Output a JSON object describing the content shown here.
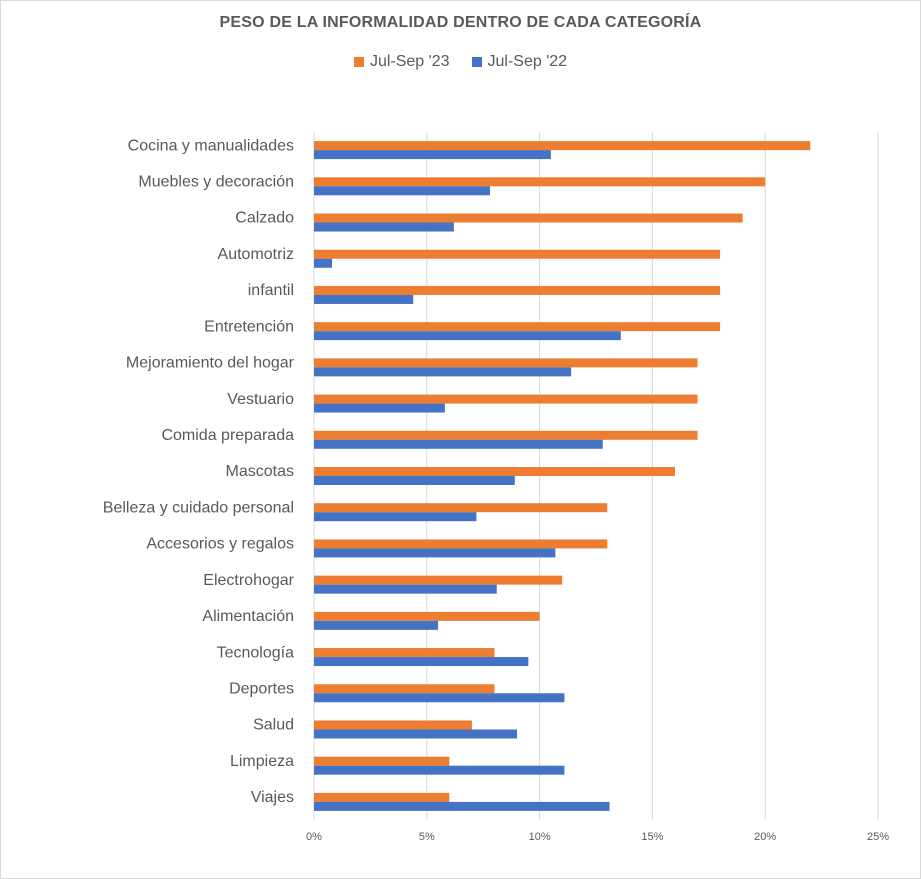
{
  "chart_data": {
    "type": "bar",
    "orientation": "horizontal",
    "title": "PESO DE LA INFORMALIDAD DENTRO DE CADA CATEGORÍA",
    "xlim": [
      0,
      25
    ],
    "x_ticks": [
      "0%",
      "5%",
      "10%",
      "15%",
      "20%",
      "25%"
    ],
    "x_tick_values": [
      0,
      5,
      10,
      15,
      20,
      25
    ],
    "grid": "vertical",
    "legend_position": "top",
    "categories": [
      "Cocina y manualidades",
      "Muebles y decoración",
      "Calzado",
      "Automotriz",
      "infantil",
      "Entretención",
      "Mejoramiento del hogar",
      "Vestuario",
      "Comida preparada",
      "Mascotas",
      "Belleza y cuidado personal",
      "Accesorios y regalos",
      "Electrohogar",
      "Alimentación",
      "Tecnología",
      "Deportes",
      "Salud",
      "Limpieza",
      "Viajes"
    ],
    "series": [
      {
        "name": "Jul-Sep '23",
        "color": "#ED7D31",
        "values": [
          22,
          20,
          19,
          18,
          18,
          18,
          17,
          17,
          17,
          16,
          13,
          13,
          11,
          10,
          8,
          8,
          7,
          6,
          6
        ]
      },
      {
        "name": "Jul-Sep '22",
        "color": "#4472C4",
        "values": [
          10.5,
          7.8,
          6.2,
          0.8,
          4.4,
          13.6,
          11.4,
          5.8,
          12.8,
          8.9,
          7.2,
          10.7,
          8.1,
          5.5,
          9.5,
          11.1,
          9.0,
          11.1,
          13.1
        ]
      }
    ]
  }
}
